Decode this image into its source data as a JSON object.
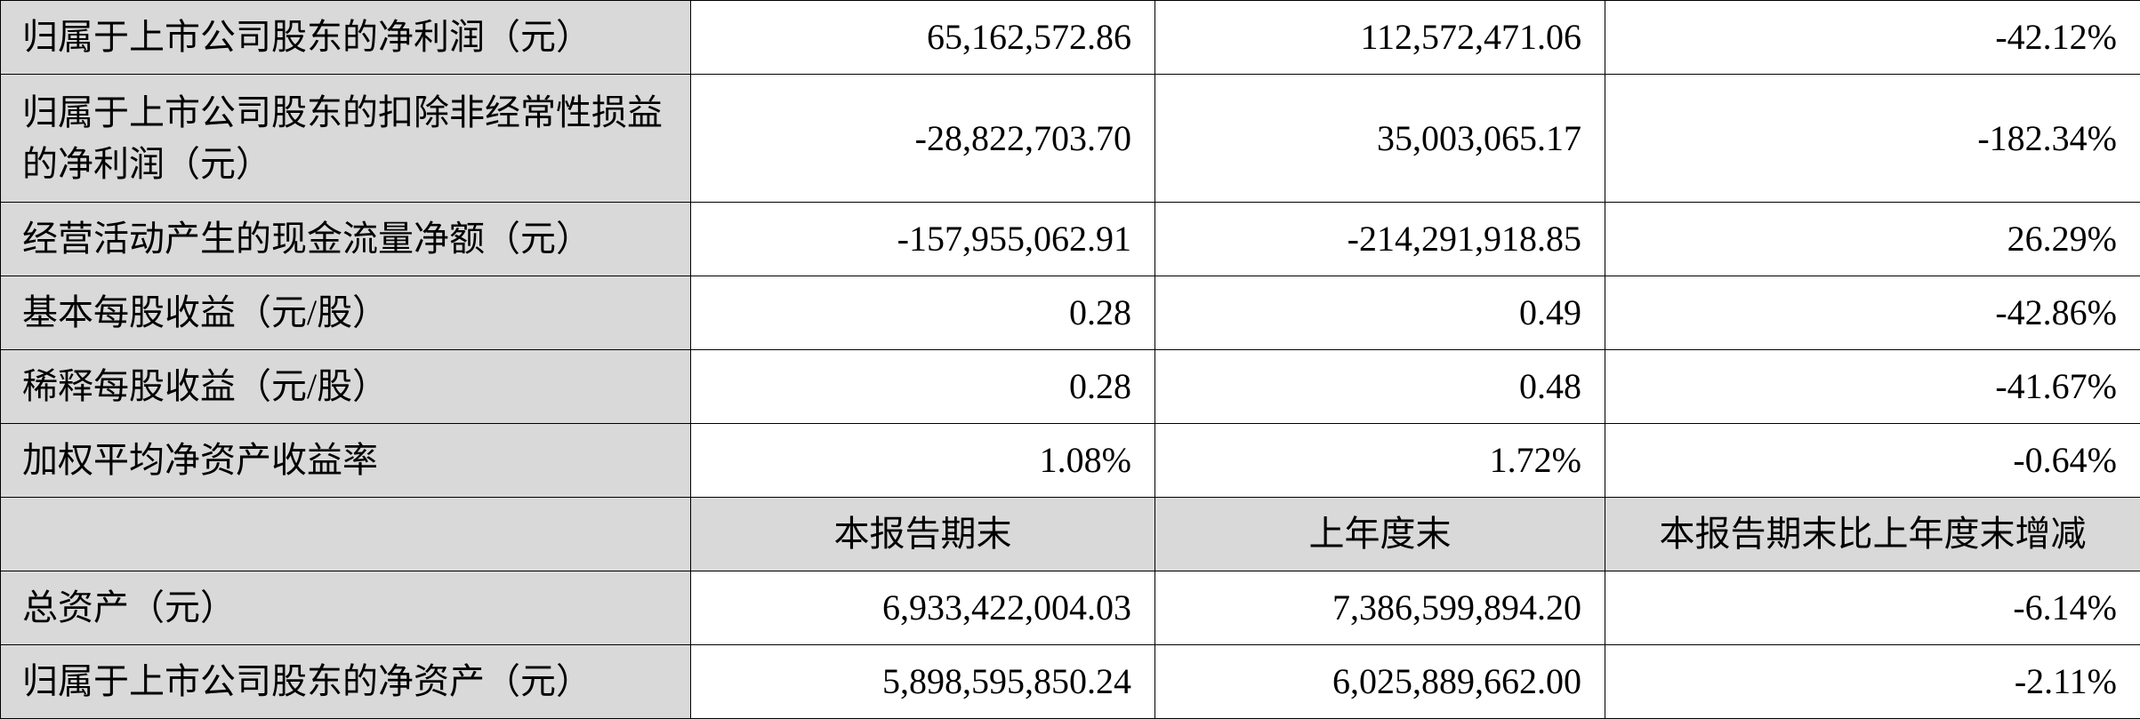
{
  "table": {
    "rows_top": [
      {
        "label": "归属于上市公司股东的净利润（元）",
        "current": "65,162,572.86",
        "previous": "112,572,471.06",
        "change": "-42.12%"
      },
      {
        "label": "归属于上市公司股东的扣除非经常性损益的净利润（元）",
        "current": "-28,822,703.70",
        "previous": "35,003,065.17",
        "change": "-182.34%"
      },
      {
        "label": "经营活动产生的现金流量净额（元）",
        "current": "-157,955,062.91",
        "previous": "-214,291,918.85",
        "change": "26.29%"
      },
      {
        "label": "基本每股收益（元/股）",
        "current": "0.28",
        "previous": "0.49",
        "change": "-42.86%"
      },
      {
        "label": "稀释每股收益（元/股）",
        "current": "0.28",
        "previous": "0.48",
        "change": "-41.67%"
      },
      {
        "label": "加权平均净资产收益率",
        "current": "1.08%",
        "previous": "1.72%",
        "change": "-0.64%"
      }
    ],
    "header_bottom": {
      "label": "",
      "current": "本报告期末",
      "previous": "上年度末",
      "change": "本报告期末比上年度末增减"
    },
    "rows_bottom": [
      {
        "label": "总资产（元）",
        "current": "6,933,422,004.03",
        "previous": "7,386,599,894.20",
        "change": "-6.14%"
      },
      {
        "label": "归属于上市公司股东的净资产（元）",
        "current": "5,898,595,850.24",
        "previous": "6,025,889,662.00",
        "change": "-2.11%"
      }
    ]
  }
}
